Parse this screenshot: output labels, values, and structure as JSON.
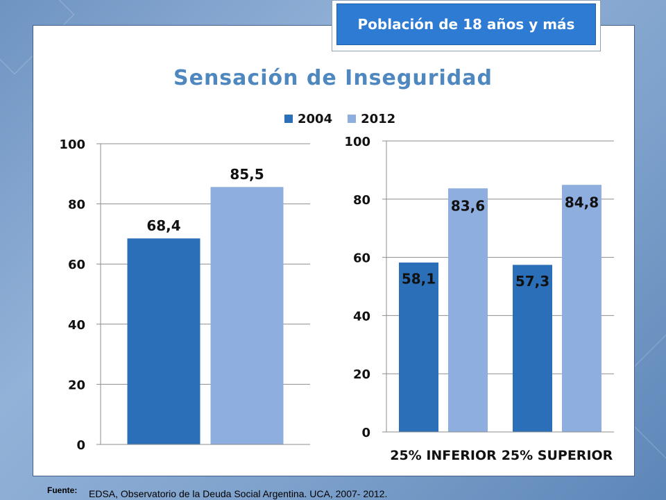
{
  "badge": "Población de 18 años y más",
  "title": "Sensación de Inseguridad",
  "legend": [
    {
      "label": "2004",
      "color": "#2b6fb8"
    },
    {
      "label": "2012",
      "color": "#8eaee0"
    }
  ],
  "chart_data": [
    {
      "type": "bar",
      "categories": [
        ""
      ],
      "series": [
        {
          "name": "2004",
          "values": [
            68.4
          ],
          "labels": [
            "68,4"
          ],
          "color": "#2b6fb8"
        },
        {
          "name": "2012",
          "values": [
            85.5
          ],
          "labels": [
            "85,5"
          ],
          "color": "#8eaee0"
        }
      ],
      "ylim": [
        0,
        100
      ],
      "yticks": [
        "0",
        "20",
        "40",
        "60",
        "80",
        "100"
      ],
      "grid": true
    },
    {
      "type": "bar",
      "categories": [
        "25% INFERIOR",
        "25% SUPERIOR"
      ],
      "series": [
        {
          "name": "2004",
          "values": [
            58.1,
            57.3
          ],
          "labels": [
            "58,1",
            "57,3"
          ],
          "color": "#2b6fb8"
        },
        {
          "name": "2012",
          "values": [
            83.6,
            84.8
          ],
          "labels": [
            "83,6",
            "84,8"
          ],
          "color": "#8eaee0"
        }
      ],
      "ylim": [
        0,
        100
      ],
      "yticks": [
        "0",
        "20",
        "40",
        "60",
        "80",
        "100"
      ],
      "grid": true
    }
  ],
  "footer": {
    "source_key": "Fuente:",
    "source_text": "EDSA, Observatorio de la Deuda Social Argentina. UCA, 2007- 2012."
  }
}
